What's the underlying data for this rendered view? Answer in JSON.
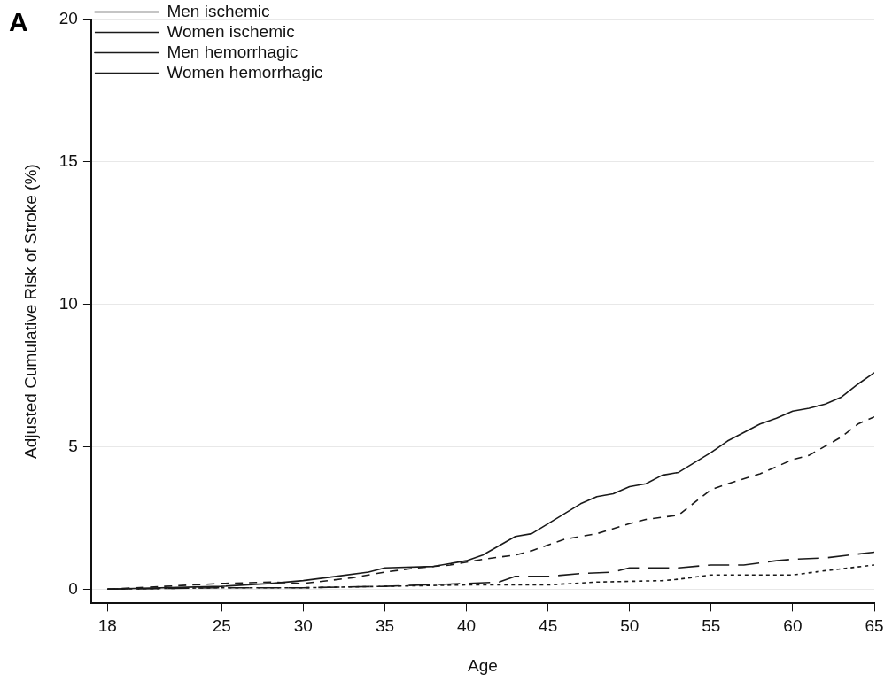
{
  "chart_data": {
    "type": "line",
    "xlabel": "Age",
    "ylabel": "Adjusted Cumulative Risk of Stroke (%)",
    "annotations": [
      "A"
    ],
    "xlim": [
      17,
      65
    ],
    "xticks": [
      18,
      25,
      30,
      35,
      40,
      45,
      50,
      55,
      60,
      65
    ],
    "ylim": [
      -0.5,
      20
    ],
    "yticks": [
      0,
      5,
      10,
      15,
      20
    ],
    "grid": "y",
    "legend": "top left",
    "marker": "none",
    "series": [
      {
        "name": "Men ischemic",
        "color": "#1a1a1a",
        "line_style": "solid",
        "x": [
          18,
          25,
          28,
          30,
          32,
          34,
          35,
          38,
          40,
          41,
          43,
          44,
          45,
          47,
          48,
          49,
          50,
          51,
          52,
          53,
          55,
          56,
          58,
          59,
          60,
          61,
          62,
          63,
          64,
          65
        ],
        "values": [
          0,
          0.1,
          0.2,
          0.3,
          0.45,
          0.6,
          0.75,
          0.8,
          1.0,
          1.2,
          1.85,
          1.95,
          2.3,
          3.0,
          3.25,
          3.35,
          3.6,
          3.7,
          4.0,
          4.1,
          4.8,
          5.2,
          5.8,
          6.0,
          6.25,
          6.35,
          6.5,
          6.75,
          7.2,
          7.6
        ]
      },
      {
        "name": "Women ischemic",
        "color": "#1a1a1a",
        "line_style": "dashed",
        "x": [
          18,
          25,
          28,
          30,
          33,
          35,
          37,
          39,
          41,
          43,
          44,
          46,
          48,
          50,
          51,
          53,
          55,
          56,
          58,
          60,
          61,
          63,
          64,
          65
        ],
        "values": [
          0,
          0.2,
          0.25,
          0.2,
          0.4,
          0.6,
          0.75,
          0.85,
          1.05,
          1.2,
          1.35,
          1.75,
          1.95,
          2.3,
          2.45,
          2.6,
          3.5,
          3.7,
          4.05,
          4.55,
          4.7,
          5.35,
          5.8,
          6.05
        ]
      },
      {
        "name": "Men hemorrhagic",
        "color": "#1a1a1a",
        "line_style": "longdash",
        "x": [
          18,
          25,
          30,
          35,
          40,
          42,
          43,
          45,
          47,
          49,
          50,
          53,
          55,
          57,
          59,
          60,
          62,
          65
        ],
        "values": [
          0,
          0.05,
          0.05,
          0.1,
          0.2,
          0.25,
          0.45,
          0.45,
          0.55,
          0.6,
          0.75,
          0.75,
          0.85,
          0.85,
          1.0,
          1.05,
          1.1,
          1.3
        ]
      },
      {
        "name": "Women hemorrhagic",
        "color": "#1a1a1a",
        "line_style": "dotted",
        "x": [
          18,
          25,
          30,
          35,
          40,
          45,
          48,
          52,
          53,
          55,
          60,
          62,
          65
        ],
        "values": [
          0,
          0.05,
          0.05,
          0.1,
          0.15,
          0.15,
          0.25,
          0.3,
          0.35,
          0.5,
          0.5,
          0.65,
          0.85
        ]
      }
    ]
  }
}
